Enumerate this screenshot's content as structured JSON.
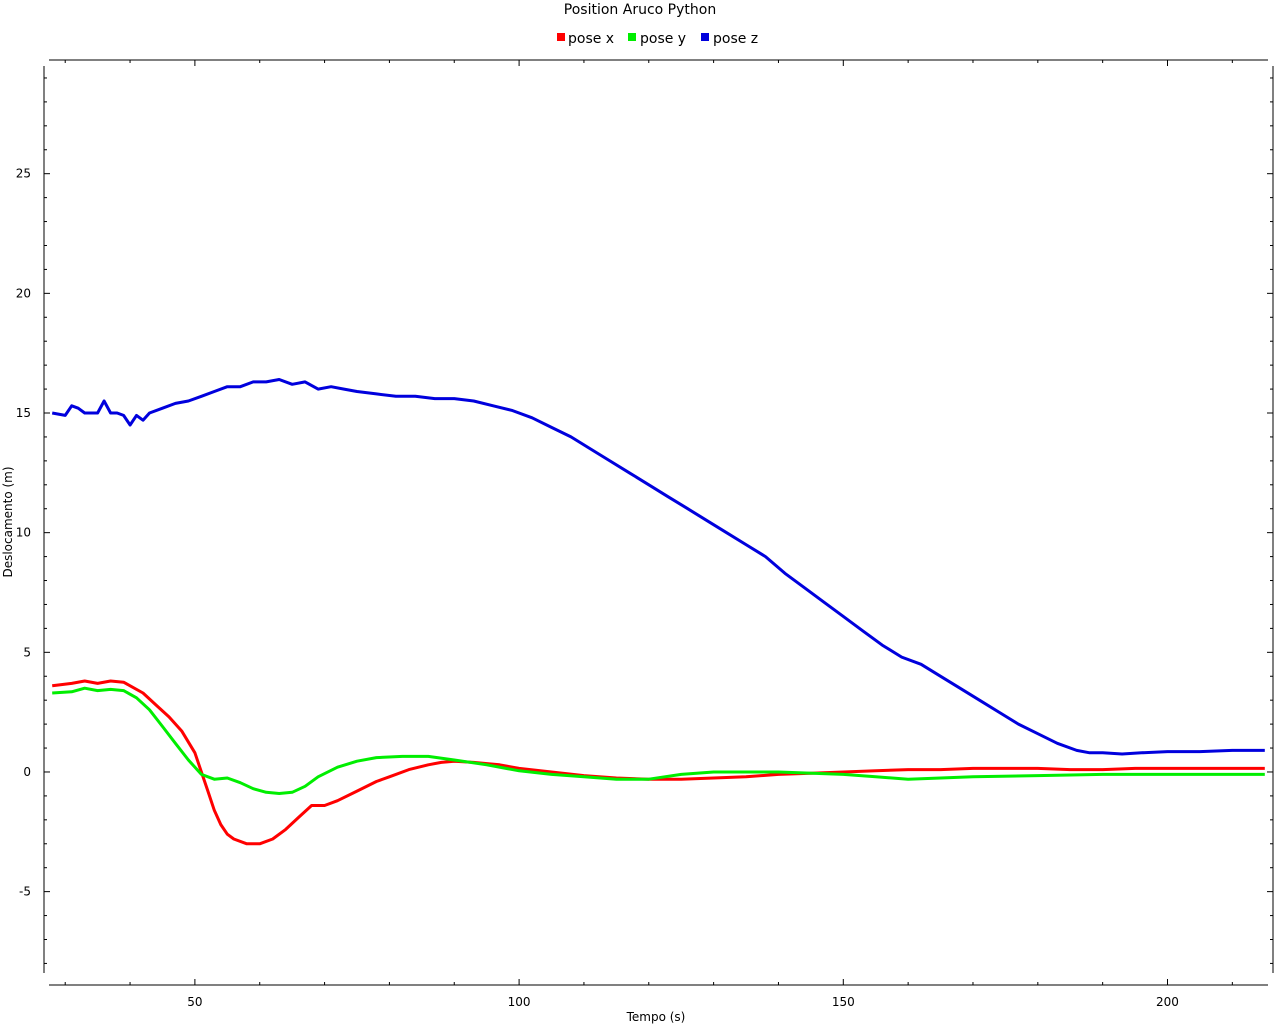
{
  "chart_data": {
    "type": "line",
    "title": "Position Aruco Python",
    "xlabel": "Tempo (s)",
    "ylabel": "Deslocamento (m)",
    "xlim": [
      27.5,
      215.5
    ],
    "ylim": [
      -8.4,
      29.5
    ],
    "x_ticks": [
      50,
      100,
      150,
      200
    ],
    "x_tick_labels": [
      "50",
      "100",
      "150",
      "200"
    ],
    "y_ticks": [
      -5,
      0,
      5,
      10,
      15,
      20,
      25
    ],
    "y_tick_labels": [
      "-5",
      "0",
      "5",
      "10",
      "15",
      "20",
      "25"
    ],
    "x_minor_step": 10,
    "y_minor_step": 1,
    "grid": false,
    "legend_position": "top",
    "series": [
      {
        "name": "pose x",
        "color": "#ff0000",
        "x": [
          28,
          31,
          33,
          35,
          37,
          39,
          40,
          42,
          44,
          46,
          48,
          50,
          51,
          52,
          53,
          54,
          55,
          56,
          58,
          60,
          62,
          64,
          66,
          68,
          70,
          72,
          75,
          78,
          80,
          83,
          86,
          88,
          90,
          93,
          97,
          100,
          105,
          110,
          115,
          120,
          125,
          130,
          135,
          140,
          145,
          150,
          155,
          160,
          165,
          170,
          175,
          180,
          185,
          190,
          195,
          200,
          205,
          210,
          215
        ],
        "y": [
          3.6,
          3.7,
          3.8,
          3.7,
          3.8,
          3.75,
          3.6,
          3.3,
          2.8,
          2.3,
          1.7,
          0.8,
          0.0,
          -0.8,
          -1.6,
          -2.2,
          -2.6,
          -2.8,
          -3.0,
          -3.0,
          -2.8,
          -2.4,
          -1.9,
          -1.4,
          -1.4,
          -1.2,
          -0.8,
          -0.4,
          -0.2,
          0.1,
          0.3,
          0.4,
          0.45,
          0.4,
          0.3,
          0.15,
          0.0,
          -0.15,
          -0.25,
          -0.3,
          -0.3,
          -0.25,
          -0.2,
          -0.1,
          -0.05,
          0.0,
          0.05,
          0.1,
          0.1,
          0.15,
          0.15,
          0.15,
          0.1,
          0.1,
          0.15,
          0.15,
          0.15,
          0.15,
          0.15
        ]
      },
      {
        "name": "pose y",
        "color": "#00ee00",
        "x": [
          28,
          31,
          33,
          35,
          37,
          39,
          41,
          43,
          45,
          47,
          49,
          51,
          53,
          55,
          57,
          59,
          61,
          63,
          65,
          67,
          69,
          72,
          75,
          78,
          82,
          86,
          90,
          95,
          100,
          105,
          110,
          115,
          120,
          125,
          130,
          140,
          150,
          155,
          160,
          165,
          170,
          180,
          190,
          200,
          210,
          215
        ],
        "y": [
          3.3,
          3.35,
          3.5,
          3.4,
          3.45,
          3.4,
          3.1,
          2.6,
          1.9,
          1.2,
          0.5,
          -0.1,
          -0.3,
          -0.25,
          -0.45,
          -0.7,
          -0.85,
          -0.9,
          -0.85,
          -0.6,
          -0.2,
          0.2,
          0.45,
          0.6,
          0.65,
          0.65,
          0.5,
          0.3,
          0.05,
          -0.1,
          -0.2,
          -0.3,
          -0.3,
          -0.1,
          0.0,
          0.0,
          -0.1,
          -0.2,
          -0.3,
          -0.25,
          -0.2,
          -0.15,
          -0.1,
          -0.1,
          -0.1,
          -0.1
        ]
      },
      {
        "name": "pose z",
        "color": "#0000dd",
        "x": [
          28,
          30,
          31,
          32,
          33,
          35,
          36,
          37,
          38,
          39,
          40,
          41,
          42,
          43,
          45,
          47,
          49,
          51,
          53,
          55,
          57,
          59,
          61,
          63,
          65,
          67,
          69,
          71,
          73,
          75,
          78,
          81,
          84,
          87,
          90,
          93,
          96,
          99,
          102,
          105,
          108,
          111,
          114,
          117,
          120,
          123,
          126,
          129,
          132,
          135,
          138,
          141,
          144,
          147,
          150,
          153,
          156,
          159,
          162,
          165,
          168,
          171,
          174,
          177,
          180,
          183,
          186,
          188,
          190,
          193,
          196,
          200,
          205,
          210,
          215
        ],
        "y": [
          15.0,
          14.9,
          15.3,
          15.2,
          15.0,
          15.0,
          15.5,
          15.0,
          15.0,
          14.9,
          14.5,
          14.9,
          14.7,
          15.0,
          15.2,
          15.4,
          15.5,
          15.7,
          15.9,
          16.1,
          16.1,
          16.3,
          16.3,
          16.4,
          16.2,
          16.3,
          16.0,
          16.1,
          16.0,
          15.9,
          15.8,
          15.7,
          15.7,
          15.6,
          15.6,
          15.5,
          15.3,
          15.1,
          14.8,
          14.4,
          14.0,
          13.5,
          13.0,
          12.5,
          12.0,
          11.5,
          11.0,
          10.5,
          10.0,
          9.5,
          9.0,
          8.3,
          7.7,
          7.1,
          6.5,
          5.9,
          5.3,
          4.8,
          4.5,
          4.0,
          3.5,
          3.0,
          2.5,
          2.0,
          1.6,
          1.2,
          0.9,
          0.8,
          0.8,
          0.75,
          0.8,
          0.85,
          0.85,
          0.9,
          0.9
        ]
      }
    ]
  }
}
